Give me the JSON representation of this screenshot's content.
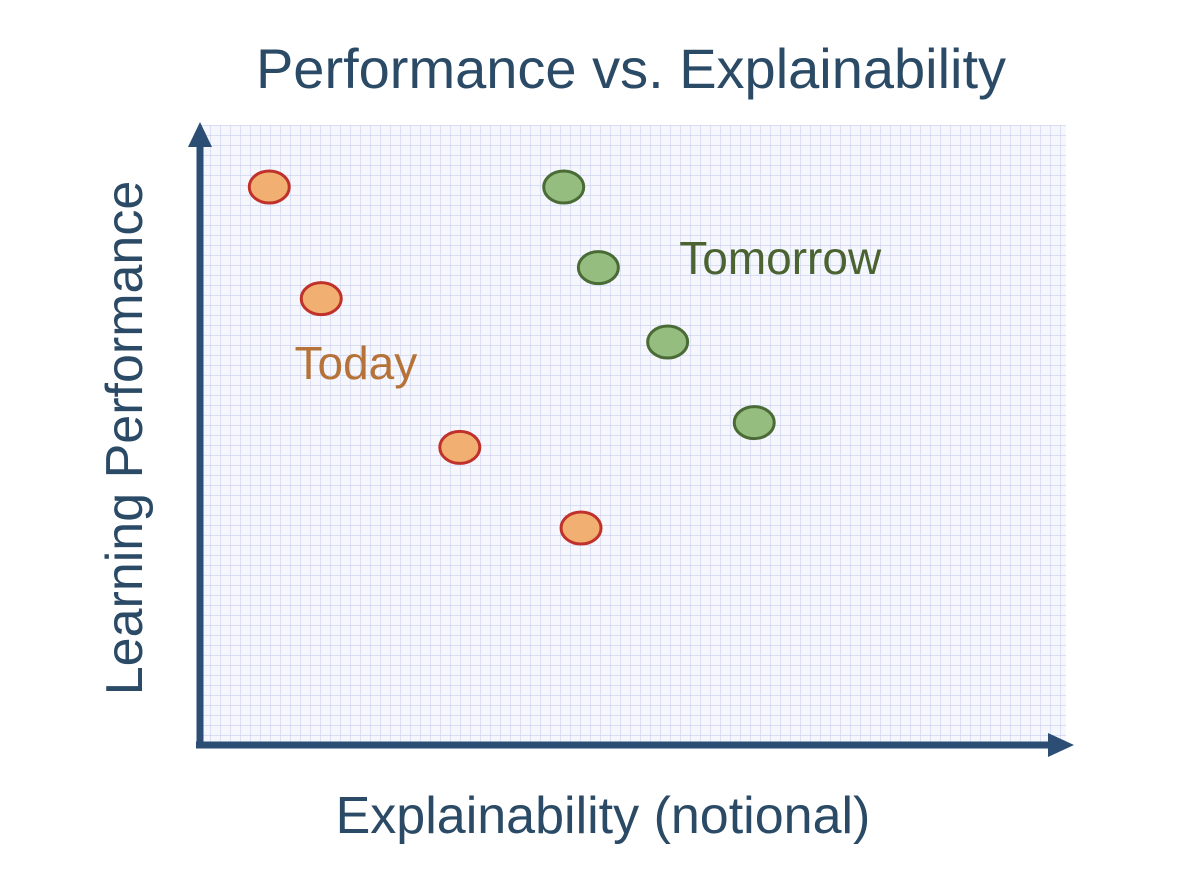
{
  "chart_data": {
    "type": "scatter",
    "title": "Performance vs. Explainability",
    "xlabel": "Explainability (notional)",
    "ylabel": "Learning Performance",
    "xlim": [
      0,
      10
    ],
    "ylim": [
      0,
      10
    ],
    "grid": true,
    "colors": {
      "text": "#2a4a66",
      "axis": "#2c4d74",
      "grid": "#c9d0ee",
      "plot_bg": "#f6f7fd"
    },
    "series": [
      {
        "name": "Today",
        "fill": "#f1b071",
        "stroke": "#c0312b",
        "label_color": "#b5733a",
        "label_at": [
          1.8,
          5.9
        ],
        "points": [
          {
            "x": 0.8,
            "y": 9.0
          },
          {
            "x": 1.4,
            "y": 7.2
          },
          {
            "x": 3.0,
            "y": 4.8
          },
          {
            "x": 4.4,
            "y": 3.5
          }
        ]
      },
      {
        "name": "Tomorrow",
        "fill": "#94bd7f",
        "stroke": "#4a6b36",
        "label_color": "#4a6330",
        "label_at": [
          6.7,
          7.6
        ],
        "points": [
          {
            "x": 4.2,
            "y": 9.0
          },
          {
            "x": 4.6,
            "y": 7.7
          },
          {
            "x": 5.4,
            "y": 6.5
          },
          {
            "x": 6.4,
            "y": 5.2
          }
        ]
      }
    ]
  }
}
